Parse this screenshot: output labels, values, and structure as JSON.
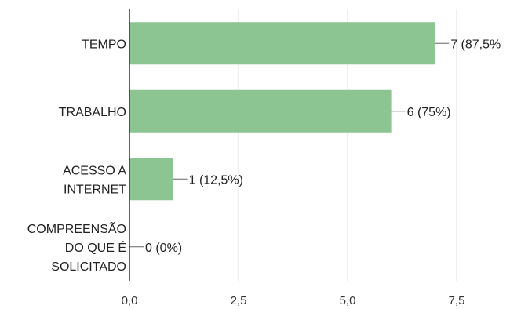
{
  "chart_data": {
    "type": "bar",
    "orientation": "horizontal",
    "categories": [
      [
        "TEMPO"
      ],
      [
        "TRABALHO"
      ],
      [
        "ACESSO A",
        "INTERNET"
      ],
      [
        "COMPREENSÃO",
        "DO QUE É",
        "SOLICITADO"
      ]
    ],
    "values": [
      7,
      6,
      1,
      0
    ],
    "data_labels": [
      "7 (87,5%",
      "6 (75%)",
      "1 (12,5%)",
      "0 (0%)"
    ],
    "x_ticks": [
      "0,0",
      "2,5",
      "5,0",
      "7,5"
    ],
    "x_tick_values": [
      0,
      2.5,
      5,
      7.5
    ],
    "xlim": [
      0,
      7.5
    ],
    "grid": true,
    "bar_color": "#8cc592"
  }
}
